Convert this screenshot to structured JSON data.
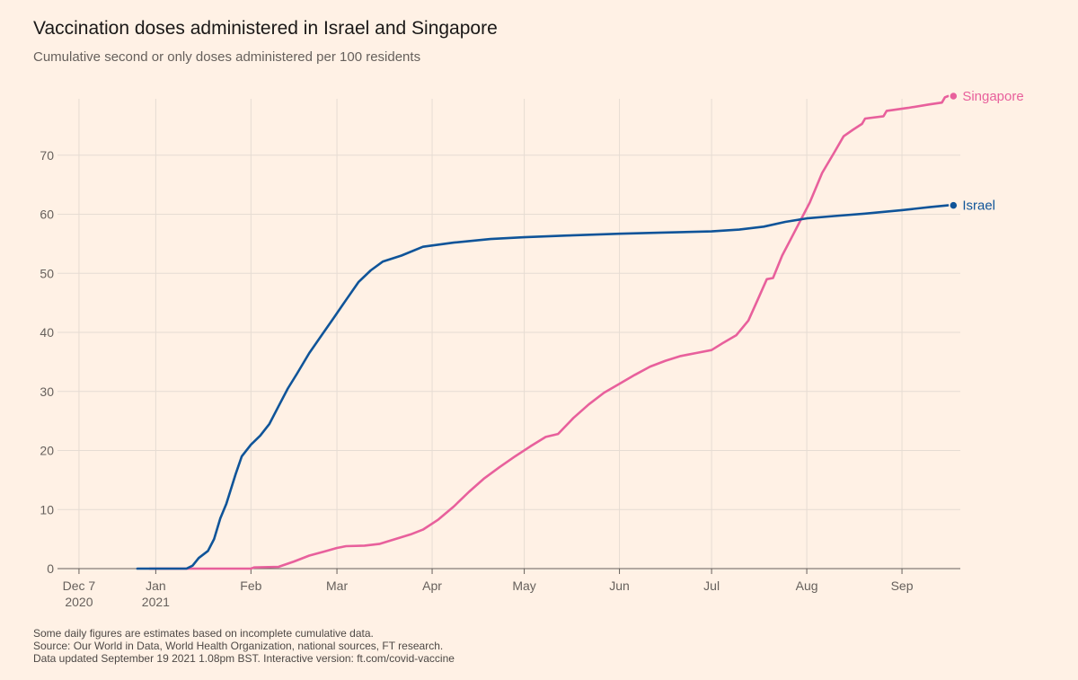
{
  "title": "Vaccination doses administered in Israel and Singapore",
  "subtitle": "Cumulative second or only doses administered per 100 residents",
  "footnotes": [
    "Some daily figures are estimates based on incomplete cumulative data.",
    "Source: Our World in Data, World Health Organization, national sources, FT research.",
    "Data updated September 19 2021 1.08pm BST. Interactive version: ft.com/covid-vaccine"
  ],
  "colors": {
    "background": "#fff1e5",
    "grid": "#e6dcd3",
    "axis": "#66605c",
    "israel": "#0f5499",
    "singapore": "#e8609c"
  },
  "chart_data": {
    "type": "line",
    "title": "Vaccination doses administered in Israel and Singapore",
    "subtitle": "Cumulative second or only doses administered per 100 residents",
    "xlabel": "",
    "ylabel": "",
    "xlim": [
      "2020-11-30",
      "2021-09-20"
    ],
    "ylim": [
      0,
      80
    ],
    "grid": true,
    "legend": "end-of-line labels",
    "y_ticks": [
      0,
      10,
      20,
      30,
      40,
      50,
      60,
      70
    ],
    "x_ticks": [
      {
        "date": "2020-12-07",
        "label": "Dec 7",
        "sublabel": "2020"
      },
      {
        "date": "2021-01-01",
        "label": "Jan",
        "sublabel": "2021"
      },
      {
        "date": "2021-02-01",
        "label": "Feb",
        "sublabel": ""
      },
      {
        "date": "2021-03-01",
        "label": "Mar",
        "sublabel": ""
      },
      {
        "date": "2021-04-01",
        "label": "Apr",
        "sublabel": ""
      },
      {
        "date": "2021-05-01",
        "label": "May",
        "sublabel": ""
      },
      {
        "date": "2021-06-01",
        "label": "Jun",
        "sublabel": ""
      },
      {
        "date": "2021-07-01",
        "label": "Jul",
        "sublabel": ""
      },
      {
        "date": "2021-08-01",
        "label": "Aug",
        "sublabel": ""
      },
      {
        "date": "2021-09-01",
        "label": "Sep",
        "sublabel": ""
      }
    ],
    "series": [
      {
        "name": "Israel",
        "color": "#0f5499",
        "points": [
          [
            "2020-12-26",
            0
          ],
          [
            "2020-12-28",
            0
          ],
          [
            "2021-01-11",
            0
          ],
          [
            "2021-01-13",
            0.5
          ],
          [
            "2021-01-15",
            1.8
          ],
          [
            "2021-01-18",
            3
          ],
          [
            "2021-01-20",
            5
          ],
          [
            "2021-01-22",
            8.5
          ],
          [
            "2021-01-24",
            11
          ],
          [
            "2021-01-27",
            16
          ],
          [
            "2021-01-29",
            19
          ],
          [
            "2021-02-01",
            21
          ],
          [
            "2021-02-04",
            22.5
          ],
          [
            "2021-02-07",
            24.5
          ],
          [
            "2021-02-10",
            27.5
          ],
          [
            "2021-02-13",
            30.5
          ],
          [
            "2021-02-16",
            33
          ],
          [
            "2021-02-20",
            36.5
          ],
          [
            "2021-02-24",
            39.5
          ],
          [
            "2021-02-28",
            42.5
          ],
          [
            "2021-03-04",
            45.5
          ],
          [
            "2021-03-08",
            48.5
          ],
          [
            "2021-03-12",
            50.5
          ],
          [
            "2021-03-16",
            52
          ],
          [
            "2021-03-22",
            53
          ],
          [
            "2021-03-29",
            54.5
          ],
          [
            "2021-04-08",
            55.2
          ],
          [
            "2021-04-20",
            55.8
          ],
          [
            "2021-05-01",
            56.1
          ],
          [
            "2021-05-15",
            56.4
          ],
          [
            "2021-06-01",
            56.7
          ],
          [
            "2021-06-15",
            56.9
          ],
          [
            "2021-07-01",
            57.1
          ],
          [
            "2021-07-10",
            57.4
          ],
          [
            "2021-07-18",
            57.9
          ],
          [
            "2021-07-25",
            58.7
          ],
          [
            "2021-08-01",
            59.3
          ],
          [
            "2021-08-10",
            59.7
          ],
          [
            "2021-08-20",
            60.1
          ],
          [
            "2021-09-01",
            60.7
          ],
          [
            "2021-09-10",
            61.2
          ],
          [
            "2021-09-16",
            61.5
          ]
        ]
      },
      {
        "name": "Singapore",
        "color": "#e8609c",
        "points": [
          [
            "2020-12-30",
            0
          ],
          [
            "2021-02-01",
            0
          ],
          [
            "2021-02-02",
            0.2
          ],
          [
            "2021-02-10",
            0.3
          ],
          [
            "2021-02-15",
            1.2
          ],
          [
            "2021-02-20",
            2.2
          ],
          [
            "2021-02-25",
            2.9
          ],
          [
            "2021-03-01",
            3.5
          ],
          [
            "2021-03-04",
            3.8
          ],
          [
            "2021-03-10",
            3.9
          ],
          [
            "2021-03-15",
            4.2
          ],
          [
            "2021-03-20",
            5
          ],
          [
            "2021-03-25",
            5.8
          ],
          [
            "2021-03-29",
            6.6
          ],
          [
            "2021-04-03",
            8.3
          ],
          [
            "2021-04-08",
            10.5
          ],
          [
            "2021-04-13",
            13
          ],
          [
            "2021-04-18",
            15.3
          ],
          [
            "2021-04-23",
            17.2
          ],
          [
            "2021-04-28",
            19
          ],
          [
            "2021-05-03",
            20.7
          ],
          [
            "2021-05-08",
            22.3
          ],
          [
            "2021-05-12",
            22.8
          ],
          [
            "2021-05-17",
            25.5
          ],
          [
            "2021-05-22",
            27.8
          ],
          [
            "2021-05-27",
            29.8
          ],
          [
            "2021-06-01",
            31.3
          ],
          [
            "2021-06-06",
            32.8
          ],
          [
            "2021-06-11",
            34.2
          ],
          [
            "2021-06-16",
            35.2
          ],
          [
            "2021-06-21",
            36
          ],
          [
            "2021-06-26",
            36.5
          ],
          [
            "2021-07-01",
            37
          ],
          [
            "2021-07-05",
            38.3
          ],
          [
            "2021-07-09",
            39.5
          ],
          [
            "2021-07-13",
            42
          ],
          [
            "2021-07-16",
            45.5
          ],
          [
            "2021-07-19",
            49
          ],
          [
            "2021-07-21",
            49.2
          ],
          [
            "2021-07-24",
            53
          ],
          [
            "2021-07-27",
            56
          ],
          [
            "2021-07-30",
            59
          ],
          [
            "2021-08-02",
            62
          ],
          [
            "2021-08-06",
            67
          ],
          [
            "2021-08-10",
            70.5
          ],
          [
            "2021-08-13",
            73.2
          ],
          [
            "2021-08-16",
            74.3
          ],
          [
            "2021-08-19",
            75.3
          ],
          [
            "2021-08-20",
            76.2
          ],
          [
            "2021-08-26",
            76.6
          ],
          [
            "2021-08-27",
            77.5
          ],
          [
            "2021-09-03",
            78
          ],
          [
            "2021-09-10",
            78.6
          ],
          [
            "2021-09-14",
            78.9
          ],
          [
            "2021-09-15",
            79.8
          ],
          [
            "2021-09-16",
            80
          ]
        ]
      }
    ]
  }
}
